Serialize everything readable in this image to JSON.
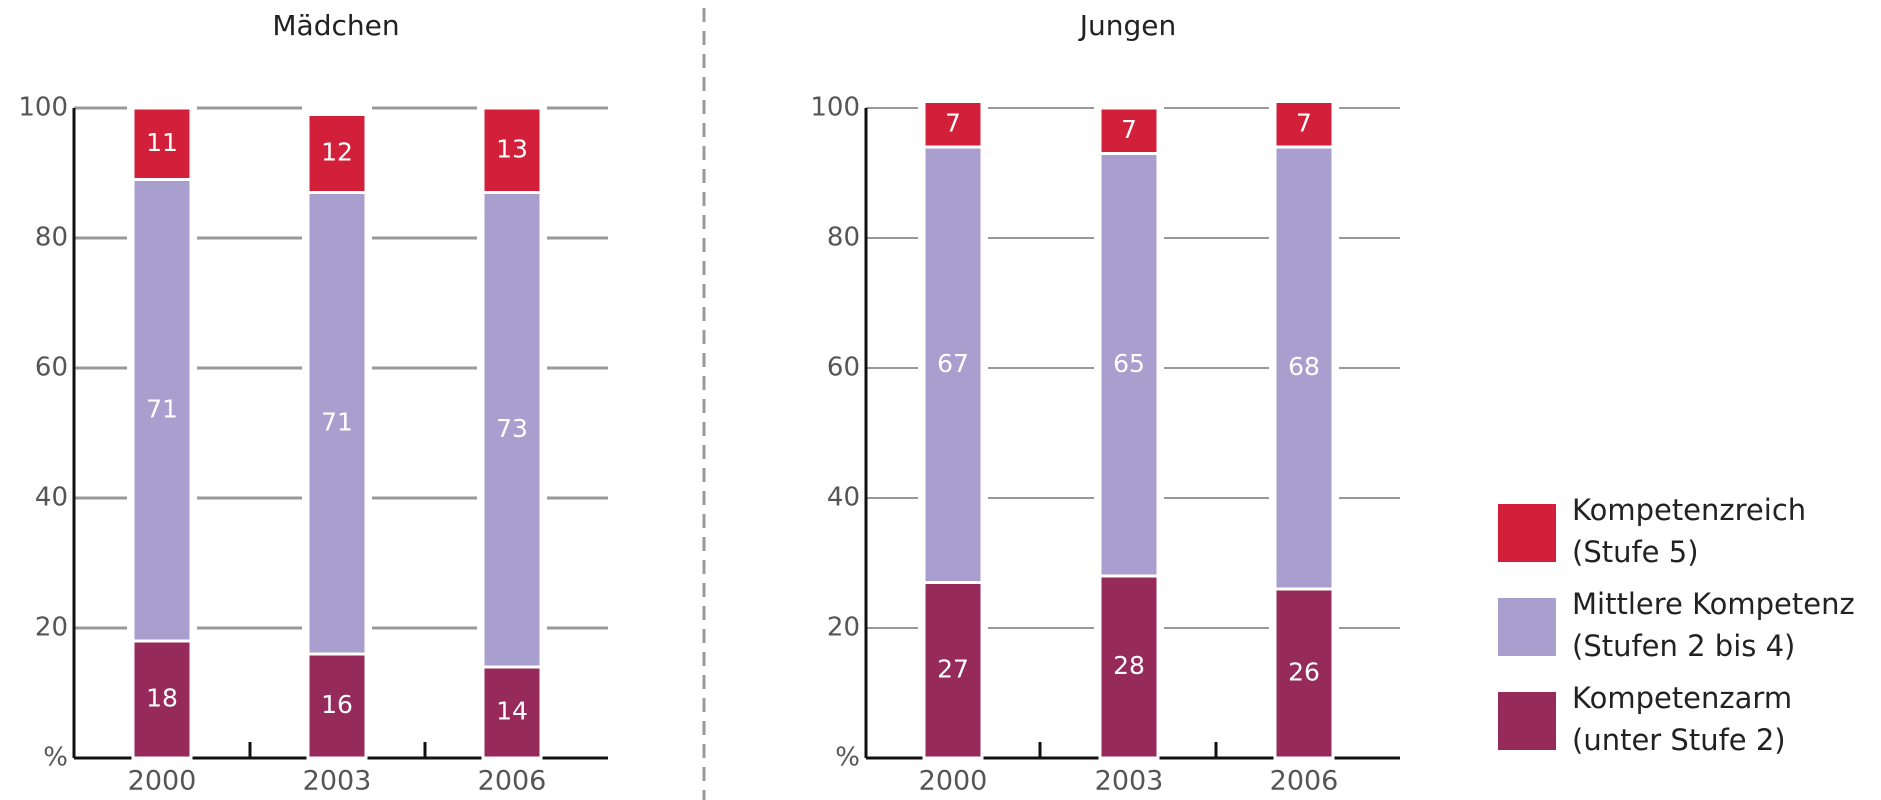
{
  "chart_data": [
    {
      "type": "stacked_bar",
      "title": "Mädchen",
      "categories": [
        "2000",
        "2003",
        "2006"
      ],
      "series": [
        {
          "name": "Kompetenzarm (unter Stufe 2)",
          "color": "#952a5b",
          "values": [
            18,
            16,
            14
          ]
        },
        {
          "name": "Mittlere Kompetenz (Stufen 2 bis 4)",
          "color": "#a99fcf",
          "values": [
            71,
            71,
            73
          ]
        },
        {
          "name": "Kompetenzreich (Stufe 5)",
          "color": "#d3203a",
          "values": [
            11,
            12,
            13
          ]
        }
      ],
      "ylim": [
        0,
        100
      ],
      "yticks": [
        {
          "value": 0,
          "label": "%"
        },
        20,
        40,
        60,
        80,
        100
      ],
      "grid": true
    },
    {
      "type": "stacked_bar",
      "title": "Jungen",
      "categories": [
        "2000",
        "2003",
        "2006"
      ],
      "series": [
        {
          "name": "Kompetenzarm (unter Stufe 2)",
          "color": "#952a5b",
          "values": [
            27,
            28,
            26
          ]
        },
        {
          "name": "Mittlere Kompetenz (Stufen 2 bis 4)",
          "color": "#a99fcf",
          "values": [
            67,
            65,
            68
          ]
        },
        {
          "name": "Kompetenzreich (Stufe 5)",
          "color": "#d3203a",
          "values": [
            7,
            7,
            7
          ]
        }
      ],
      "ylim": [
        0,
        100
      ],
      "yticks": [
        {
          "value": 0,
          "label": "%"
        },
        20,
        40,
        60,
        80,
        100
      ],
      "grid": true
    }
  ]
}
